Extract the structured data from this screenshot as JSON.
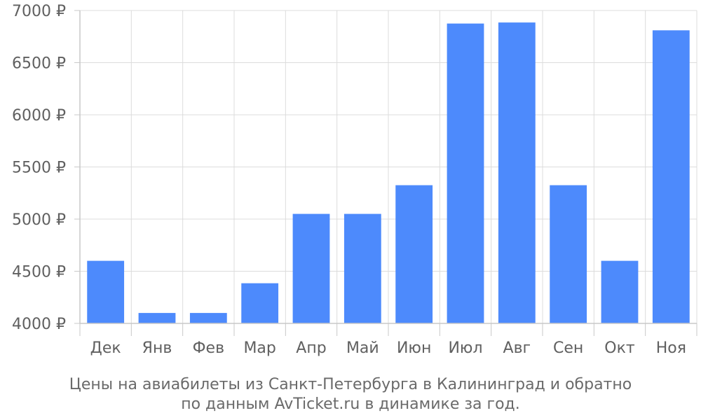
{
  "chart_data": {
    "type": "bar",
    "categories": [
      "Дек",
      "Янв",
      "Фев",
      "Мар",
      "Апр",
      "Май",
      "Июн",
      "Июл",
      "Авг",
      "Сен",
      "Окт",
      "Ноя"
    ],
    "values": [
      4600,
      4100,
      4100,
      4385,
      5050,
      5050,
      5325,
      6875,
      6885,
      5325,
      4600,
      6810
    ],
    "ylim": [
      4000,
      7000
    ],
    "yticks": [
      4000,
      4500,
      5000,
      5500,
      6000,
      6500,
      7000
    ],
    "ytick_labels": [
      "4000 ₽",
      "4500 ₽",
      "5000 ₽",
      "5500 ₽",
      "6000 ₽",
      "6500 ₽",
      "7000 ₽"
    ],
    "grid": true,
    "bar_color": "#4d8afc",
    "caption_line1": "Цены на авиабилеты из Санкт-Петербурга в Калининград и обратно",
    "caption_line2": "по данным AvTicket.ru в динамике за год."
  }
}
